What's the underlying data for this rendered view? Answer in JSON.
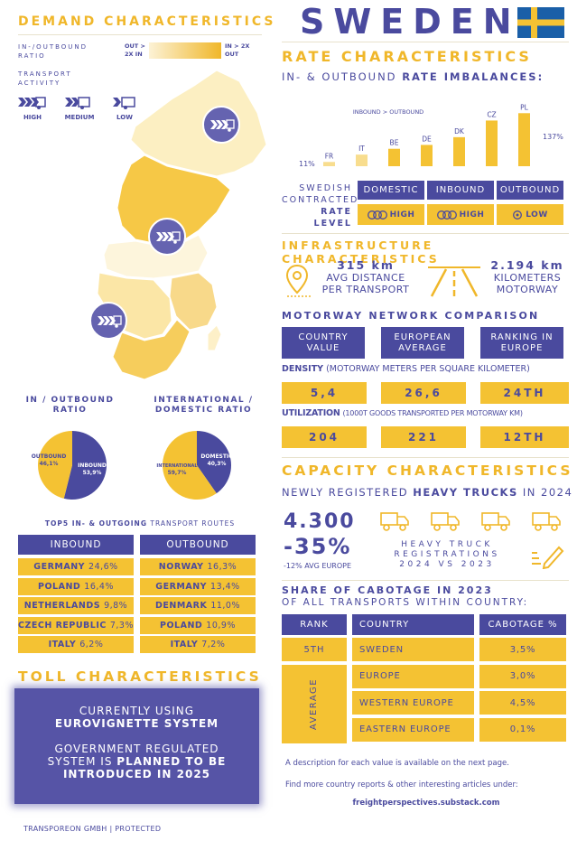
{
  "title": "SWEDEN",
  "demand": {
    "header": "DEMAND CHARACTERISTICS",
    "ratio_label": "IN-/OUTBOUND RATIO",
    "legend_left": "OUT > 2X IN",
    "legend_right": "IN > 2X OUT",
    "activity_label": "TRANSPORT ACTIVITY",
    "activity_levels": [
      "HIGH",
      "MEDIUM",
      "LOW"
    ]
  },
  "ratio_pies": {
    "inout_title": "IN / OUTBOUND RATIO",
    "intl_title": "INTERNATIONAL / DOMESTIC RATIO",
    "inout": [
      {
        "label": "INBOUND",
        "value": "53,9%",
        "share": 53.9,
        "color": "#4a4a9e"
      },
      {
        "label": "OUTBOUND",
        "value": "46,1%",
        "share": 46.1,
        "color": "#f4c233"
      }
    ],
    "intl": [
      {
        "label": "DOMESTIC",
        "value": "40,3%",
        "share": 40.3,
        "color": "#4a4a9e"
      },
      {
        "label": "INTERNATIONAL",
        "value": "59,7%",
        "share": 59.7,
        "color": "#f4c233"
      }
    ]
  },
  "routes": {
    "title_bold": "TOP5 IN- & OUTGOING",
    "title_rest": "TRANSPORT ROUTES",
    "inbound_header": "INBOUND",
    "outbound_header": "OUTBOUND",
    "inbound": [
      {
        "country": "GERMANY",
        "value": "24,6%"
      },
      {
        "country": "POLAND",
        "value": "16,4%"
      },
      {
        "country": "NETHERLANDS",
        "value": "9,8%"
      },
      {
        "country": "CZECH REPUBLIC",
        "value": "7,3%"
      },
      {
        "country": "ITALY",
        "value": "6,2%"
      }
    ],
    "outbound": [
      {
        "country": "NORWAY",
        "value": "16,3%"
      },
      {
        "country": "GERMANY",
        "value": "13,4%"
      },
      {
        "country": "DENMARK",
        "value": "11,0%"
      },
      {
        "country": "POLAND",
        "value": "10,9%"
      },
      {
        "country": "ITALY",
        "value": "7,2%"
      }
    ]
  },
  "toll": {
    "header": "TOLL CHARACTERISTICS",
    "line1": "CURRENTLY USING",
    "line1_bold": "EUROVIGNETTE SYSTEM",
    "line2": "GOVERNMENT REGULATED",
    "line3_pre": "SYSTEM IS",
    "line3_bold": "PLANNED TO BE",
    "line4_bold": "INTRODUCED IN 2025"
  },
  "footer_left": "TRANSPOREON GMBH | PROTECTED",
  "rate": {
    "header": "RATE CHARACTERISTICS",
    "subheader_pre": "IN- & OUTBOUND",
    "subheader_bold": "RATE IMBALANCES:",
    "inbound_gt": "INBOUND > OUTBOUND",
    "min_label": "11%",
    "max_label": "137%",
    "contracted_line1": "SWEDISH",
    "contracted_line2": "CONTRACTED",
    "contracted_line3": "RATE LEVEL",
    "levels": [
      {
        "name": "DOMESTIC",
        "value": "HIGH"
      },
      {
        "name": "INBOUND",
        "value": "HIGH"
      },
      {
        "name": "OUTBOUND",
        "value": "LOW"
      }
    ]
  },
  "chart_data": {
    "type": "bar",
    "categories": [
      "FR",
      "IT",
      "BE",
      "DE",
      "DK",
      "CZ",
      "PL"
    ],
    "values": [
      11,
      30,
      45,
      55,
      75,
      118,
      137
    ],
    "ylim": [
      0,
      140
    ]
  },
  "infra": {
    "header": "INFRASTRUCTURE CHARACTERISTICS",
    "avg_value": "315 km",
    "avg_label1": "AVG DISTANCE",
    "avg_label2": "PER TRANSPORT",
    "km_value": "2.194 km",
    "km_label1": "KILOMETERS",
    "km_label2": "MOTORWAY"
  },
  "motorway": {
    "header": "MOTORWAY NETWORK COMPARISON",
    "columns": [
      "COUNTRY VALUE",
      "EUROPEAN AVERAGE",
      "RANKING IN EUROPE"
    ],
    "density_bold": "DENSITY",
    "density_rest": "(MOTORWAY METERS PER SQUARE KILOMETER)",
    "density": [
      "5,4",
      "26,6",
      "24TH"
    ],
    "util_bold": "UTILIZATION",
    "util_rest": "(1000T GOODS TRANSPORTED PER MOTORWAY KM)",
    "util": [
      "204",
      "221",
      "12TH"
    ]
  },
  "capacity": {
    "header": "CAPACITY CHARACTERISTICS",
    "sub_pre": "NEWLY REGISTERED",
    "sub_bold": "HEAVY TRUCKS",
    "sub_post": "IN 2024",
    "count": "4.300",
    "change": "-35%",
    "avg_europe": "-12% AVG EUROPE",
    "reg_line1": "HEAVY TRUCK",
    "reg_line2": "REGISTRATIONS",
    "reg_line3": "2024 VS 2023"
  },
  "cabotage": {
    "title1": "SHARE OF CABOTAGE IN 2023",
    "title2": "OF ALL TRANSPORTS WITHIN COUNTRY:",
    "headers": [
      "RANK",
      "COUNTRY",
      "CABOTAGE %"
    ],
    "rank": "5TH",
    "avg_label": "AVERAGE",
    "rows": [
      {
        "country": "SWEDEN",
        "value": "3,5%"
      },
      {
        "country": "EUROPE",
        "value": "3,0%"
      },
      {
        "country": "WESTERN EUROPE",
        "value": "4,5%"
      },
      {
        "country": "EASTERN EUROPE",
        "value": "0,1%"
      }
    ]
  },
  "notes": {
    "line1": "A description for each value is available on the next page.",
    "line2": "Find more country reports & other interesting articles under:",
    "link": "freightperspectives.substack.com"
  }
}
